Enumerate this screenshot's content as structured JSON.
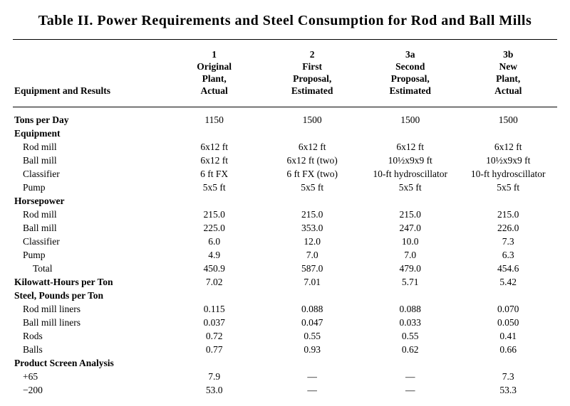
{
  "title": "Table II. Power Requirements and Steel Consumption for Rod and Ball Mills",
  "header": {
    "rowlabel": "Equipment and Results",
    "cols": [
      {
        "num": "1",
        "l1": "Original",
        "l2": "Plant,",
        "l3": "Actual"
      },
      {
        "num": "2",
        "l1": "First",
        "l2": "Proposal,",
        "l3": "Estimated"
      },
      {
        "num": "3a",
        "l1": "Second",
        "l2": "Proposal,",
        "l3": "Estimated"
      },
      {
        "num": "3b",
        "l1": "New",
        "l2": "Plant,",
        "l3": "Actual"
      }
    ]
  },
  "rows": [
    {
      "type": "section",
      "label": "Tons per Day",
      "v": [
        "1150",
        "1500",
        "1500",
        "1500"
      ]
    },
    {
      "type": "section",
      "label": "Equipment"
    },
    {
      "type": "item1",
      "label": "Rod mill",
      "v": [
        "6x12 ft",
        "6x12 ft",
        "6x12 ft",
        "6x12 ft"
      ]
    },
    {
      "type": "item1",
      "label": "Ball mill",
      "v": [
        "6x12 ft",
        "6x12 ft (two)",
        "10½x9x9 ft",
        "10½x9x9 ft"
      ]
    },
    {
      "type": "item1",
      "label": "Classifier",
      "v": [
        "6 ft FX",
        "6 ft FX (two)",
        "10-ft hydroscillator",
        "10-ft hydroscillator"
      ]
    },
    {
      "type": "item1",
      "label": "Pump",
      "v": [
        "5x5 ft",
        "5x5 ft",
        "5x5 ft",
        "5x5 ft"
      ]
    },
    {
      "type": "section",
      "label": "Horsepower"
    },
    {
      "type": "item1",
      "label": "Rod mill",
      "v": [
        "215.0",
        "215.0",
        "215.0",
        "215.0"
      ]
    },
    {
      "type": "item1",
      "label": "Ball mill",
      "v": [
        "225.0",
        "353.0",
        "247.0",
        "226.0"
      ]
    },
    {
      "type": "item1",
      "label": "Classifier",
      "v": [
        "6.0",
        "12.0",
        "10.0",
        "7.3"
      ]
    },
    {
      "type": "item1",
      "label": "Pump",
      "v": [
        "4.9",
        "7.0",
        "7.0",
        "6.3"
      ]
    },
    {
      "type": "item2",
      "label": "Total",
      "v": [
        "450.9",
        "587.0",
        "479.0",
        "454.6"
      ]
    },
    {
      "type": "section",
      "label": "Kilowatt-Hours per Ton",
      "v": [
        "7.02",
        "7.01",
        "5.71",
        "5.42"
      ]
    },
    {
      "type": "section",
      "label": "Steel, Pounds per Ton"
    },
    {
      "type": "item1",
      "label": "Rod mill liners",
      "v": [
        "0.115",
        "0.088",
        "0.088",
        "0.070"
      ]
    },
    {
      "type": "item1",
      "label": "Ball mill liners",
      "v": [
        "0.037",
        "0.047",
        "0.033",
        "0.050"
      ]
    },
    {
      "type": "item1",
      "label": "Rods",
      "v": [
        "0.72",
        "0.55",
        "0.55",
        "0.41"
      ]
    },
    {
      "type": "item1",
      "label": "Balls",
      "v": [
        "0.77",
        "0.93",
        "0.62",
        "0.66"
      ]
    },
    {
      "type": "section",
      "label": "Product Screen Analysis"
    },
    {
      "type": "item1",
      "label": "+65",
      "v": [
        "7.9",
        "—",
        "—",
        "7.3"
      ]
    },
    {
      "type": "item1",
      "label": "−200",
      "v": [
        "53.0",
        "—",
        "—",
        "53.3"
      ]
    }
  ]
}
